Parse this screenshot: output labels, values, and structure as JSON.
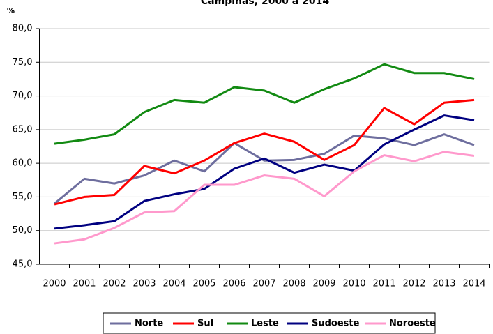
{
  "chart_data": {
    "type": "line",
    "title": "Campinas, 2000 a 2014",
    "y_label": "%",
    "categories": [
      "2000",
      "2001",
      "2002",
      "2003",
      "2004",
      "2005",
      "2006",
      "2007",
      "2008",
      "2009",
      "2010",
      "2011",
      "2012",
      "2013",
      "2014"
    ],
    "series": [
      {
        "name": "Norte",
        "color": "#6e6e9e",
        "values": [
          54.0,
          57.7,
          57.0,
          58.2,
          60.4,
          58.8,
          63.0,
          60.4,
          60.5,
          61.4,
          64.1,
          63.7,
          62.7,
          64.3,
          62.7
        ]
      },
      {
        "name": "Sul",
        "color": "#ff0000",
        "values": [
          53.9,
          55.0,
          55.3,
          59.6,
          58.5,
          60.4,
          63.0,
          64.4,
          63.2,
          60.5,
          62.7,
          68.2,
          65.8,
          69.0,
          69.4
        ]
      },
      {
        "name": "Leste",
        "color": "#128a12",
        "values": [
          62.9,
          63.5,
          64.3,
          67.6,
          69.4,
          69.0,
          71.3,
          70.8,
          69.0,
          71.0,
          72.6,
          74.7,
          73.4,
          73.4,
          72.5
        ]
      },
      {
        "name": "Sudoeste",
        "color": "#000080",
        "values": [
          50.3,
          50.8,
          51.4,
          54.4,
          55.4,
          56.2,
          59.2,
          60.7,
          58.6,
          59.8,
          58.9,
          62.8,
          65.0,
          67.1,
          66.4
        ]
      },
      {
        "name": "Noroeste",
        "color": "#ff99cc",
        "values": [
          48.1,
          48.7,
          50.4,
          52.7,
          52.9,
          56.8,
          56.8,
          58.2,
          57.7,
          55.1,
          58.8,
          61.2,
          60.3,
          61.7,
          61.1
        ]
      }
    ],
    "ylim": [
      45,
      80
    ],
    "yticks": [
      {
        "value": 45,
        "label": "45,0"
      },
      {
        "value": 50,
        "label": "50,0"
      },
      {
        "value": 55,
        "label": "55,0"
      },
      {
        "value": 60,
        "label": "60,0"
      },
      {
        "value": 65,
        "label": "65,0"
      },
      {
        "value": 70,
        "label": "70,0"
      },
      {
        "value": 75,
        "label": "75,0"
      },
      {
        "value": 80,
        "label": "80,0"
      }
    ],
    "grid": true
  }
}
